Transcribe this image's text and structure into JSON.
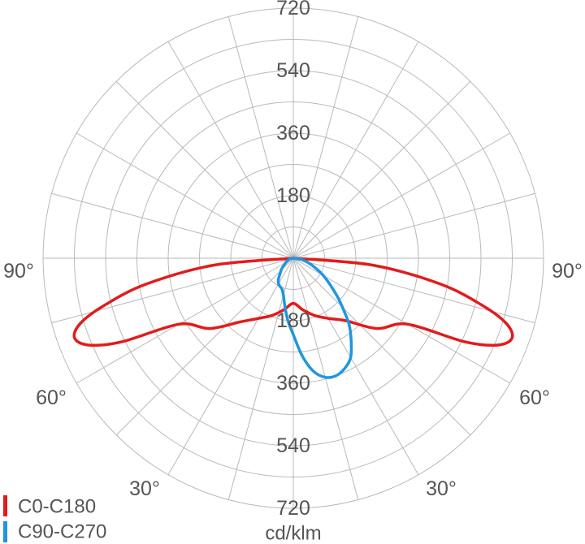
{
  "chart_data": {
    "type": "polar",
    "unit_label": "cd/klm",
    "radial_max": 720,
    "radial_ticks_top": [
      "180",
      "360",
      "540",
      "720"
    ],
    "radial_ticks_bottom": [
      "180",
      "360",
      "540",
      "720"
    ],
    "angle_labels": {
      "left_90": "90°",
      "right_90": "90°",
      "left_60": "60°",
      "right_60": "60°",
      "left_30": "30°",
      "right_30": "30°"
    },
    "grid": true,
    "legend_position": "bottom-left",
    "series": [
      {
        "name": "C0-C180",
        "color": "#e31b1b",
        "angles": [
          0,
          10,
          20,
          30,
          40,
          50,
          60,
          64,
          67,
          70,
          73,
          76,
          80,
          85,
          90
        ],
        "values_right": [
          130,
          150,
          175,
          200,
          235,
          315,
          380,
          550,
          640,
          670,
          640,
          560,
          430,
          230,
          0
        ],
        "values_left": [
          130,
          150,
          175,
          200,
          240,
          315,
          380,
          550,
          640,
          670,
          640,
          560,
          430,
          230,
          0
        ]
      },
      {
        "name": "C90-C270",
        "color": "#1f96e0",
        "angles": [
          0,
          5,
          10,
          15,
          20,
          25,
          30,
          35,
          40,
          45,
          50,
          60,
          70,
          80,
          90
        ],
        "values_right": [
          220,
          280,
          330,
          355,
          360,
          350,
          330,
          290,
          250,
          200,
          160,
          100,
          55,
          25,
          0
        ],
        "values_left": [
          220,
          180,
          140,
          110,
          95,
          90,
          85,
          75,
          60,
          50,
          40,
          25,
          15,
          8,
          0
        ]
      }
    ]
  }
}
